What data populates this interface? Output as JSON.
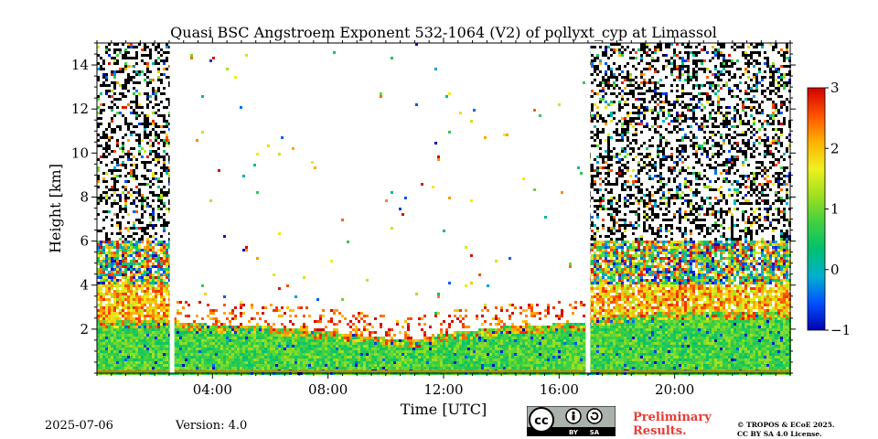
{
  "chart_data": {
    "type": "heatmap",
    "title": "Quasi BSC Angstroem Exponent 532-1064 (V2) of pollyxt_cyp at Limassol",
    "xlabel": "Time [UTC]",
    "ylabel": "Height [km]",
    "xlim_hours": [
      0,
      24
    ],
    "ylim_km": [
      0,
      15
    ],
    "x_ticks": [
      {
        "hour": 4,
        "label": "04:00"
      },
      {
        "hour": 8,
        "label": "08:00"
      },
      {
        "hour": 12,
        "label": "12:00"
      },
      {
        "hour": 16,
        "label": "16:00"
      },
      {
        "hour": 20,
        "label": "20:00"
      }
    ],
    "y_ticks": [
      {
        "km": 2,
        "label": "2"
      },
      {
        "km": 4,
        "label": "4"
      },
      {
        "km": 6,
        "label": "6"
      },
      {
        "km": 8,
        "label": "8"
      },
      {
        "km": 10,
        "label": "10"
      },
      {
        "km": 12,
        "label": "12"
      },
      {
        "km": 14,
        "label": "14"
      }
    ],
    "colorbar": {
      "min": -1,
      "max": 3,
      "colormap": [
        "#0000b0",
        "#0050ff",
        "#00b0d0",
        "#00c070",
        "#40d040",
        "#a0e020",
        "#f0f020",
        "#ffb000",
        "#ff5000",
        "#d00000"
      ],
      "ticks": [
        {
          "value": -1,
          "label": "−1"
        },
        {
          "value": 0,
          "label": "0"
        },
        {
          "value": 1,
          "label": "1"
        },
        {
          "value": 2,
          "label": "2"
        },
        {
          "value": 3,
          "label": "3"
        }
      ]
    },
    "data_gaps_hours": [
      2.6,
      17.0
    ],
    "boundary_layer_top_km": [
      {
        "hour": 0,
        "km": 2.4
      },
      {
        "hour": 2.5,
        "km": 2.4
      },
      {
        "hour": 4,
        "km": 2.2
      },
      {
        "hour": 6,
        "km": 2.1
      },
      {
        "hour": 8,
        "km": 1.9
      },
      {
        "hour": 10,
        "km": 1.6
      },
      {
        "hour": 11,
        "km": 1.5
      },
      {
        "hour": 12,
        "km": 1.8
      },
      {
        "hour": 14,
        "km": 2.1
      },
      {
        "hour": 16.9,
        "km": 2.3
      },
      {
        "hour": 17.1,
        "km": 2.5
      },
      {
        "hour": 20,
        "km": 2.8
      },
      {
        "hour": 24,
        "km": 2.8
      }
    ],
    "noisy_high_altitude_hours": [
      [
        0,
        2.6
      ],
      [
        17.0,
        24
      ]
    ],
    "typical_values": {
      "boundary_layer": 0.8,
      "elevated_layer": 2.3,
      "noise": [
        -1,
        3
      ]
    }
  },
  "footer": {
    "date": "2025-07-06",
    "version": "Version: 4.0",
    "preliminary_line1": "Preliminary",
    "preliminary_line2": "Results.",
    "copyright_line1": "© TROPOS & ECoE 2025.",
    "copyright_line2": "CC BY SA 4.0 License.",
    "license_badge_cc": "cc",
    "license_badge_by": "BY",
    "license_badge_sa": "SA",
    "preliminary_color": "#e83a35"
  }
}
